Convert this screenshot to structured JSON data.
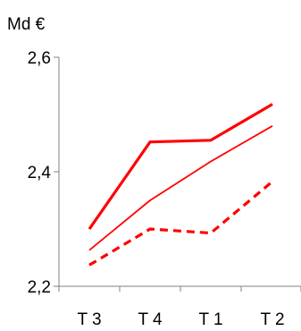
{
  "chart_data": {
    "type": "line",
    "ylabel": "Md €",
    "categories": [
      "T 3",
      "T 4",
      "T 1",
      "T 2"
    ],
    "ylim": [
      2.2,
      2.6
    ],
    "yticks": [
      {
        "value": 2.2,
        "label": "2,2"
      },
      {
        "value": 2.4,
        "label": "2,4"
      },
      {
        "value": 2.6,
        "label": "2,6"
      }
    ],
    "grid": false,
    "legend": "none",
    "series": [
      {
        "style": "thick-solid",
        "color": "#ff0000",
        "values": [
          2.3,
          2.452,
          2.455,
          2.518
        ]
      },
      {
        "style": "thin-solid",
        "color": "#ff0000",
        "values": [
          2.263,
          2.35,
          2.418,
          2.48
        ]
      },
      {
        "style": "thick-dashed",
        "color": "#ff0000",
        "values": [
          2.237,
          2.3,
          2.293,
          2.383
        ]
      }
    ]
  }
}
